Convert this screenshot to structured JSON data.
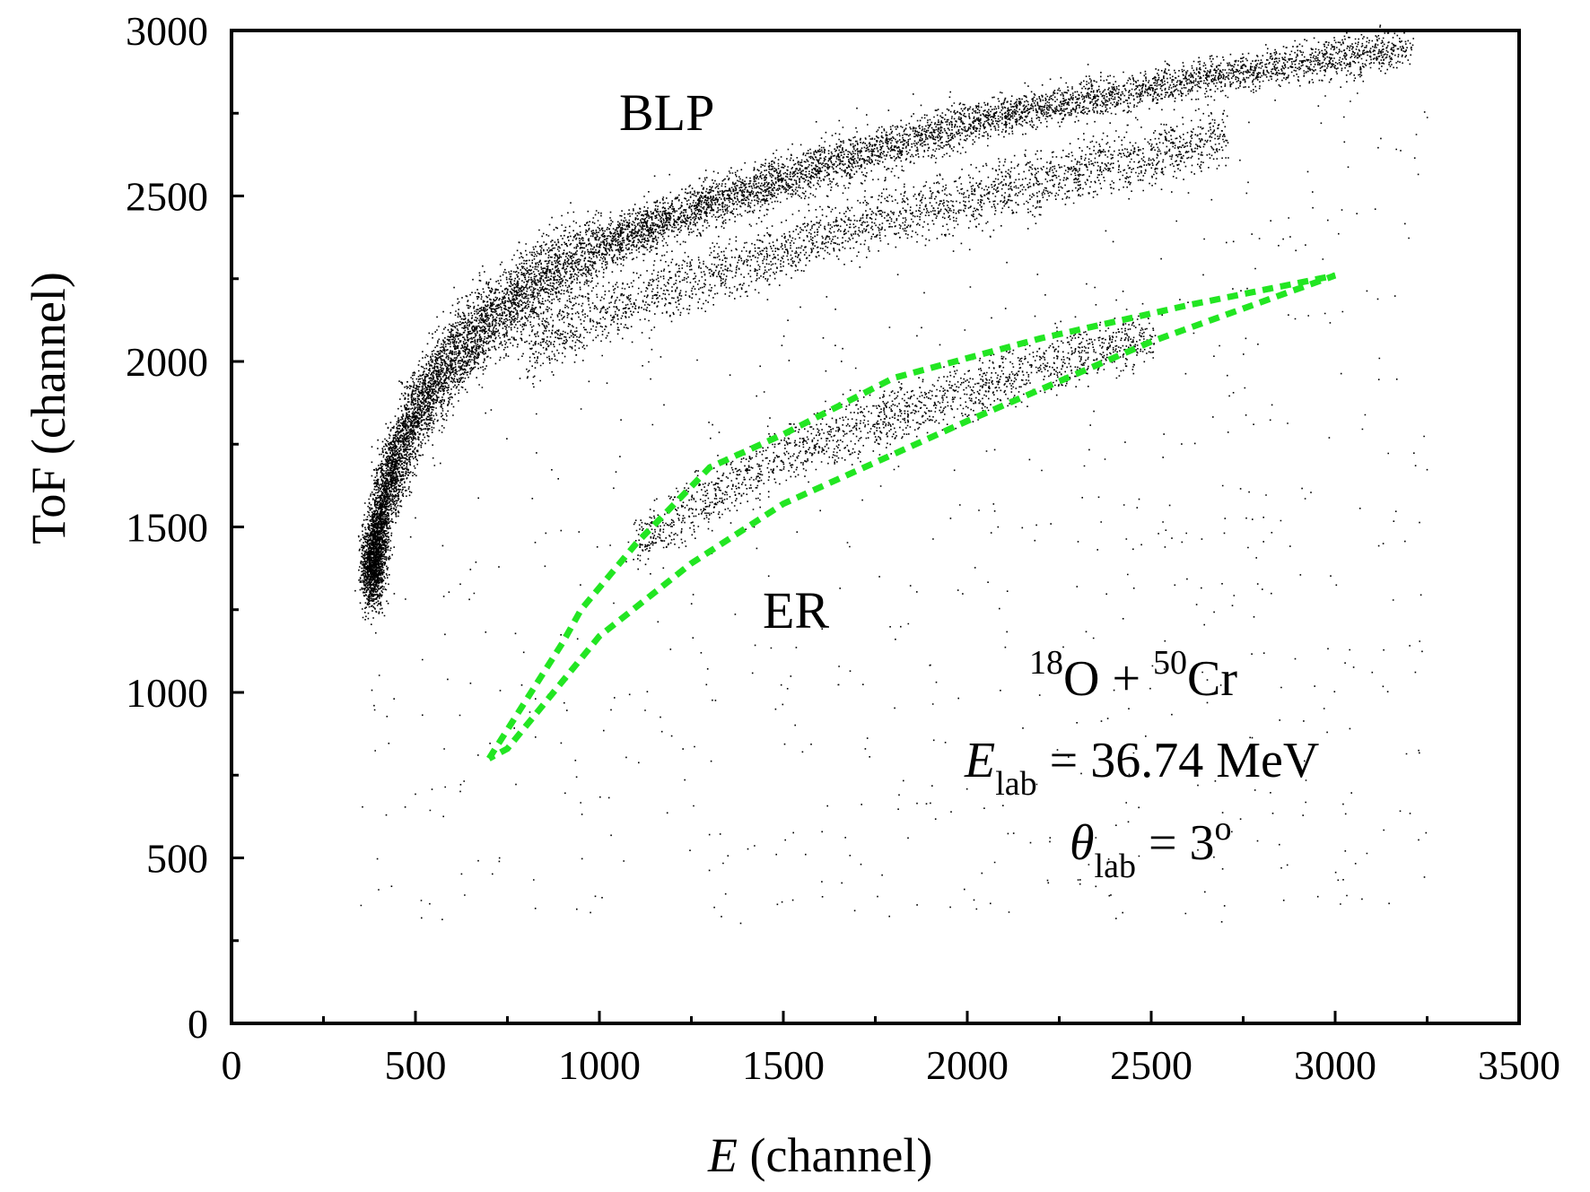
{
  "chart_data": {
    "type": "scatter",
    "xlabel_var": "E",
    "xlabel_unit": " (channel)",
    "ylabel": "ToF (channel)",
    "xlim": [
      0,
      3500
    ],
    "ylim": [
      0,
      3000
    ],
    "x_ticks_major": [
      0,
      500,
      1000,
      1500,
      2000,
      2500,
      3000,
      3500
    ],
    "x_tick_labels": [
      "0",
      "500",
      "1000",
      "1500",
      "2000",
      "2500",
      "3000",
      "3500"
    ],
    "y_ticks_major": [
      0,
      500,
      1000,
      1500,
      2000,
      2500,
      3000
    ],
    "y_tick_labels": [
      "0",
      "500",
      "1000",
      "1500",
      "2000",
      "2500",
      "3000"
    ],
    "x_ticks_minor": [
      250,
      750,
      1250,
      1750,
      2250,
      2750,
      3250
    ],
    "y_ticks_minor": [
      250,
      750,
      1250,
      1750,
      2250,
      2750
    ],
    "grid": false,
    "point_color": "#000000",
    "gate_color": "#22e622",
    "series": [
      {
        "name": "BLP",
        "role": "main band",
        "ridge": [
          [
            380,
            1370
          ],
          [
            420,
            1620
          ],
          [
            500,
            1850
          ],
          [
            600,
            2020
          ],
          [
            700,
            2130
          ],
          [
            800,
            2220
          ],
          [
            1000,
            2350
          ],
          [
            1200,
            2440
          ],
          [
            1400,
            2520
          ],
          [
            1600,
            2590
          ],
          [
            1800,
            2660
          ],
          [
            2000,
            2720
          ],
          [
            2200,
            2770
          ],
          [
            2500,
            2830
          ],
          [
            2800,
            2890
          ],
          [
            3000,
            2920
          ],
          [
            3200,
            2950
          ]
        ]
      },
      {
        "name": "",
        "role": "secondary band",
        "ridge": [
          [
            800,
            2020
          ],
          [
            1000,
            2140
          ],
          [
            1200,
            2230
          ],
          [
            1400,
            2300
          ],
          [
            1600,
            2380
          ],
          [
            1800,
            2440
          ],
          [
            2000,
            2490
          ],
          [
            2200,
            2550
          ],
          [
            2400,
            2600
          ],
          [
            2700,
            2680
          ]
        ]
      },
      {
        "name": "ER",
        "role": "evaporation residue band",
        "ridge": [
          [
            1100,
            1450
          ],
          [
            1300,
            1600
          ],
          [
            1500,
            1720
          ],
          [
            1700,
            1800
          ],
          [
            1900,
            1880
          ],
          [
            2100,
            1950
          ],
          [
            2300,
            2020
          ],
          [
            2500,
            2080
          ]
        ]
      }
    ],
    "gate": {
      "label": "ER",
      "polygon": [
        [
          700,
          800
        ],
        [
          900,
          1150
        ],
        [
          950,
          1250
        ],
        [
          1100,
          1450
        ],
        [
          1300,
          1680
        ],
        [
          1500,
          1780
        ],
        [
          1800,
          1950
        ],
        [
          2200,
          2070
        ],
        [
          2600,
          2170
        ],
        [
          3000,
          2260
        ],
        [
          2500,
          2060
        ],
        [
          2000,
          1820
        ],
        [
          1500,
          1570
        ],
        [
          1250,
          1390
        ],
        [
          1000,
          1170
        ],
        [
          750,
          830
        ],
        [
          700,
          800
        ]
      ]
    },
    "annotations": {
      "blp": "BLP",
      "er": "ER",
      "reaction": {
        "mass1": "18",
        "el1": "O",
        "plus": " + ",
        "mass2": "50",
        "el2": "Cr"
      },
      "energy": {
        "var": "E",
        "sub": "lab",
        "rest": " = 36.74 MeV"
      },
      "angle": {
        "var": "θ",
        "sub": "lab",
        "rest": " = 3",
        "sup": "o"
      }
    }
  }
}
